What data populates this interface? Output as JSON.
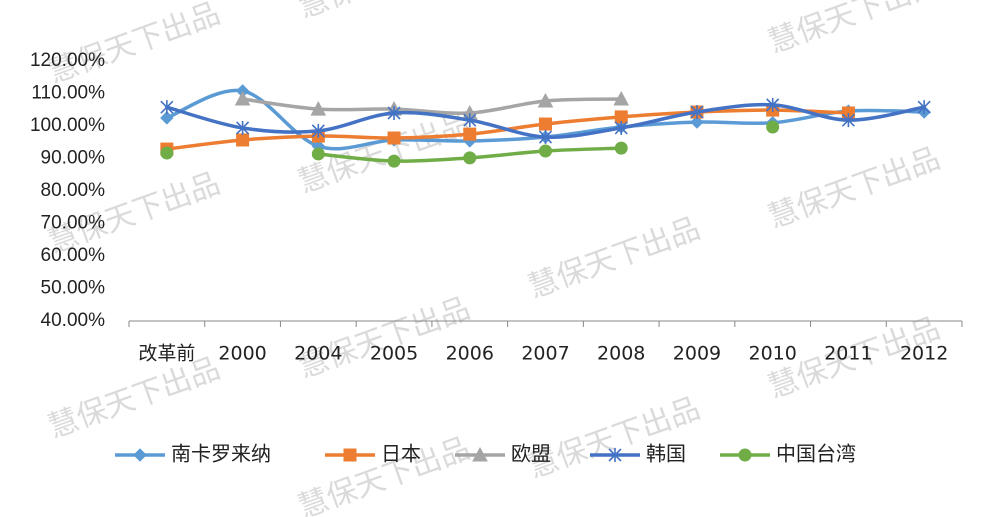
{
  "chart_data": {
    "type": "line",
    "categories": [
      "改革前",
      "2000",
      "2004",
      "2005",
      "2006",
      "2007",
      "2008",
      "2009",
      "2010",
      "2011",
      "2012"
    ],
    "series": [
      {
        "name": "南卡罗来纳",
        "color": "#5B9BD5",
        "marker": "diamond",
        "values": [
          102.5,
          110.8,
          93.8,
          95.7,
          95.4,
          96.6,
          99.7,
          101.2,
          101,
          104.6,
          104.3
        ]
      },
      {
        "name": "日本",
        "color": "#ED7D31",
        "marker": "square",
        "values": [
          92.9,
          95.7,
          96.9,
          96.3,
          97.5,
          100.6,
          102.8,
          104.3,
          104.9,
          104,
          null
        ]
      },
      {
        "name": "欧盟",
        "color": "#A5A5A5",
        "marker": "triangle",
        "values": [
          null,
          108.3,
          105.2,
          105.2,
          104,
          107.7,
          108.3,
          null,
          null,
          null,
          null
        ]
      },
      {
        "name": "韩国",
        "color": "#4472C4",
        "marker": "star",
        "values": [
          105.8,
          99.4,
          98.5,
          104,
          101.8,
          96.6,
          99.4,
          104.3,
          106.5,
          101.8,
          105.8
        ]
      },
      {
        "name": "中国台湾",
        "color": "#70AD47",
        "marker": "circle",
        "values": [
          91.7,
          null,
          91.4,
          89.2,
          90.2,
          92.3,
          93.2,
          null,
          99.7,
          null,
          null
        ]
      }
    ],
    "ylim": [
      40,
      120
    ],
    "yticks": [
      {
        "value": 40,
        "label": "40.00%"
      },
      {
        "value": 50,
        "label": "50.00%"
      },
      {
        "value": 60,
        "label": "60.00%"
      },
      {
        "value": 70,
        "label": "70.00%"
      },
      {
        "value": 80,
        "label": "80.00%"
      },
      {
        "value": 90,
        "label": "90.00%"
      },
      {
        "value": 100,
        "label": "100.00%"
      },
      {
        "value": 110,
        "label": "110.00%"
      },
      {
        "value": 120,
        "label": "120.00%"
      }
    ],
    "grid": false,
    "smooth": true,
    "legend": "bottom",
    "watermark": "慧保天下出品"
  }
}
